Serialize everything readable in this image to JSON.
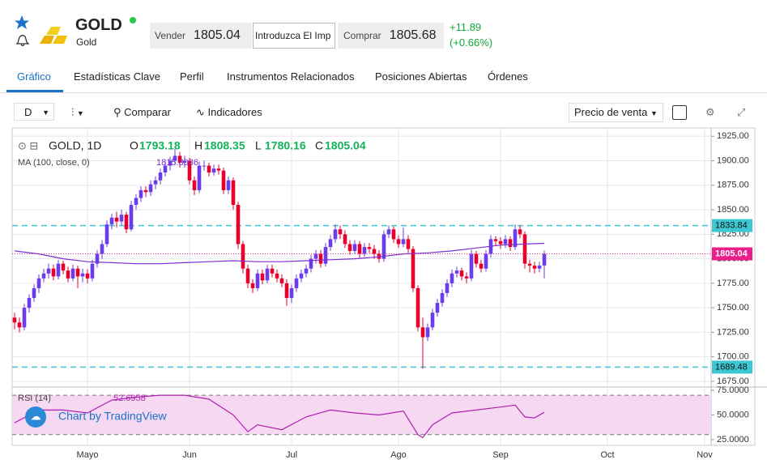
{
  "header": {
    "symbol": "GOLD",
    "name": "Gold",
    "sell_label": "Vender",
    "sell_price": "1805.04",
    "amount_placeholder": "Introduzca El Imp",
    "buy_label": "Comprar",
    "buy_price": "1805.68",
    "change": "+11.89",
    "change_pct": "(+0.66%)"
  },
  "tabs": [
    "Gráfico",
    "Estadísticas Clave",
    "Perfil",
    "Instrumentos Relacionados",
    "Posiciones Abiertas",
    "Órdenes"
  ],
  "toolbar": {
    "interval": "D",
    "compare": "Comparar",
    "indicators": "Indicadores",
    "price_type": "Precio de venta"
  },
  "chart": {
    "type": "candlestick",
    "symbol_label": "GOLD, 1D",
    "ohlc_labels": [
      "O",
      "H",
      "L",
      "C"
    ],
    "up_color": "#6a3de8",
    "down_color": "#e4002b",
    "ohlc": [
      [
        1740,
        1745,
        1728,
        1735
      ],
      [
        1735,
        1740,
        1725,
        1730
      ],
      [
        1730,
        1754,
        1727,
        1750
      ],
      [
        1750,
        1764,
        1745,
        1760
      ],
      [
        1760,
        1774,
        1756,
        1770
      ],
      [
        1770,
        1784,
        1765,
        1780
      ],
      [
        1780,
        1790,
        1776,
        1785
      ],
      [
        1785,
        1795,
        1780,
        1790
      ],
      [
        1790,
        1794,
        1778,
        1782
      ],
      [
        1782,
        1799,
        1779,
        1795
      ],
      [
        1795,
        1798,
        1784,
        1788
      ],
      [
        1788,
        1792,
        1776,
        1780
      ],
      [
        1780,
        1794,
        1777,
        1790
      ],
      [
        1790,
        1793,
        1770,
        1782
      ],
      [
        1782,
        1790,
        1776,
        1785
      ],
      [
        1785,
        1789,
        1775,
        1780
      ],
      [
        1780,
        1799,
        1777,
        1795
      ],
      [
        1795,
        1809,
        1791,
        1805
      ],
      [
        1805,
        1819,
        1800,
        1815
      ],
      [
        1815,
        1839,
        1812,
        1835
      ],
      [
        1835,
        1846,
        1830,
        1842
      ],
      [
        1842,
        1848,
        1832,
        1838
      ],
      [
        1838,
        1850,
        1834,
        1845
      ],
      [
        1845,
        1848,
        1826,
        1830
      ],
      [
        1830,
        1859,
        1828,
        1855
      ],
      [
        1855,
        1866,
        1850,
        1862
      ],
      [
        1862,
        1874,
        1858,
        1870
      ],
      [
        1870,
        1874,
        1863,
        1868
      ],
      [
        1868,
        1880,
        1864,
        1876
      ],
      [
        1876,
        1884,
        1871,
        1880
      ],
      [
        1880,
        1892,
        1876,
        1888
      ],
      [
        1888,
        1899,
        1884,
        1895
      ],
      [
        1895,
        1904,
        1890,
        1900
      ],
      [
        1900,
        1912,
        1896,
        1905
      ],
      [
        1905,
        1909,
        1893,
        1898
      ],
      [
        1898,
        1905,
        1893,
        1900
      ],
      [
        1900,
        1903,
        1876,
        1880
      ],
      [
        1880,
        1884,
        1865,
        1870
      ],
      [
        1870,
        1899,
        1867,
        1895
      ],
      [
        1895,
        1900,
        1890,
        1895
      ],
      [
        1895,
        1898,
        1884,
        1888
      ],
      [
        1888,
        1896,
        1885,
        1892
      ],
      [
        1892,
        1896,
        1886,
        1890
      ],
      [
        1890,
        1893,
        1866,
        1870
      ],
      [
        1870,
        1884,
        1866,
        1880
      ],
      [
        1880,
        1883,
        1850,
        1855
      ],
      [
        1855,
        1858,
        1810,
        1815
      ],
      [
        1815,
        1818,
        1785,
        1790
      ],
      [
        1790,
        1794,
        1770,
        1775
      ],
      [
        1775,
        1779,
        1765,
        1770
      ],
      [
        1770,
        1789,
        1767,
        1785
      ],
      [
        1785,
        1789,
        1774,
        1778
      ],
      [
        1778,
        1794,
        1775,
        1790
      ],
      [
        1790,
        1794,
        1781,
        1785
      ],
      [
        1785,
        1789,
        1776,
        1780
      ],
      [
        1780,
        1784,
        1771,
        1775
      ],
      [
        1775,
        1779,
        1752,
        1760
      ],
      [
        1760,
        1774,
        1755,
        1770
      ],
      [
        1770,
        1784,
        1766,
        1780
      ],
      [
        1780,
        1789,
        1776,
        1785
      ],
      [
        1785,
        1794,
        1781,
        1790
      ],
      [
        1790,
        1804,
        1786,
        1800
      ],
      [
        1800,
        1809,
        1795,
        1805
      ],
      [
        1805,
        1809,
        1791,
        1795
      ],
      [
        1795,
        1816,
        1792,
        1812
      ],
      [
        1812,
        1824,
        1808,
        1820
      ],
      [
        1820,
        1835,
        1816,
        1830
      ],
      [
        1830,
        1834,
        1820,
        1825
      ],
      [
        1825,
        1829,
        1811,
        1815
      ],
      [
        1815,
        1819,
        1804,
        1808
      ],
      [
        1808,
        1819,
        1805,
        1815
      ],
      [
        1815,
        1818,
        1801,
        1805
      ],
      [
        1805,
        1816,
        1802,
        1812
      ],
      [
        1812,
        1816,
        1806,
        1810
      ],
      [
        1810,
        1814,
        1800,
        1805
      ],
      [
        1805,
        1809,
        1796,
        1800
      ],
      [
        1800,
        1829,
        1797,
        1825
      ],
      [
        1825,
        1834,
        1821,
        1830
      ],
      [
        1830,
        1833,
        1816,
        1820
      ],
      [
        1820,
        1824,
        1811,
        1815
      ],
      [
        1815,
        1832,
        1812,
        1820
      ],
      [
        1820,
        1824,
        1806,
        1810
      ],
      [
        1810,
        1813,
        1766,
        1770
      ],
      [
        1770,
        1773,
        1726,
        1730
      ],
      [
        1730,
        1740,
        1688,
        1720
      ],
      [
        1720,
        1734,
        1716,
        1730
      ],
      [
        1730,
        1749,
        1727,
        1745
      ],
      [
        1745,
        1759,
        1741,
        1755
      ],
      [
        1755,
        1769,
        1751,
        1765
      ],
      [
        1765,
        1779,
        1761,
        1775
      ],
      [
        1775,
        1789,
        1771,
        1785
      ],
      [
        1785,
        1792,
        1781,
        1788
      ],
      [
        1788,
        1791,
        1778,
        1782
      ],
      [
        1782,
        1786,
        1775,
        1780
      ],
      [
        1780,
        1809,
        1777,
        1805
      ],
      [
        1805,
        1808,
        1791,
        1795
      ],
      [
        1795,
        1799,
        1786,
        1790
      ],
      [
        1790,
        1809,
        1787,
        1805
      ],
      [
        1805,
        1824,
        1801,
        1820
      ],
      [
        1820,
        1823,
        1813,
        1818
      ],
      [
        1818,
        1822,
        1810,
        1815
      ],
      [
        1815,
        1824,
        1811,
        1820
      ],
      [
        1820,
        1823,
        1808,
        1812
      ],
      [
        1812,
        1835,
        1809,
        1830
      ],
      [
        1830,
        1834,
        1821,
        1825
      ],
      [
        1825,
        1828,
        1790,
        1795
      ],
      [
        1795,
        1799,
        1786,
        1793
      ],
      [
        1793,
        1797,
        1785,
        1790
      ],
      [
        1790,
        1797,
        1786,
        1793
      ],
      [
        1793.18,
        1808.35,
        1780.16,
        1805.04
      ]
    ],
    "xlim": [
      -1,
      143
    ],
    "xticks": [
      {
        "value": 15,
        "label": "Mayo"
      },
      {
        "value": 36,
        "label": "Jun"
      },
      {
        "value": 57,
        "label": "Jul"
      },
      {
        "value": 79,
        "label": "Ago"
      },
      {
        "value": 100,
        "label": "Sep"
      },
      {
        "value": 122,
        "label": "Oct"
      },
      {
        "value": 142,
        "label": "Nov"
      }
    ],
    "ylim": [
      1670,
      1931
    ],
    "yticks": [
      {
        "value": 1675,
        "label": "1675.00"
      },
      {
        "value": 1700,
        "label": "1700.00"
      },
      {
        "value": 1725,
        "label": "1725.00"
      },
      {
        "value": 1750,
        "label": "1750.00"
      },
      {
        "value": 1775,
        "label": "1775.00"
      },
      {
        "value": 1800,
        "label": "1800.00"
      },
      {
        "value": 1825,
        "label": "1825.00"
      },
      {
        "value": 1850,
        "label": "1850.00"
      },
      {
        "value": 1875,
        "label": "1875.00"
      },
      {
        "value": 1900,
        "label": "1900.00"
      },
      {
        "value": 1925,
        "label": "1925.00"
      }
    ],
    "levels": [
      1833.84,
      1689.48
    ],
    "level_color": "#3cc7d2",
    "price_color": "#e91e8c",
    "ma": {
      "label": "MA (100, close, 0)",
      "color": "#7b2fd0",
      "x": [
        0,
        5,
        10,
        15,
        20,
        25,
        30,
        35,
        40,
        45,
        50,
        55,
        60,
        65,
        70,
        75,
        80,
        85,
        90,
        95,
        100,
        105,
        109
      ],
      "values": [
        1808,
        1805,
        1800,
        1797,
        1796,
        1795,
        1795,
        1796,
        1797,
        1798,
        1797,
        1797,
        1798,
        1799,
        1800,
        1802,
        1805,
        1806,
        1808,
        1811,
        1814,
        1815,
        1815.8036
      ]
    },
    "rsi": {
      "label": "RSI (14)",
      "color": "#b020b0",
      "band_color": "#f7d8f3",
      "x": [
        0,
        5,
        10,
        15,
        20,
        25,
        30,
        35,
        40,
        45,
        48,
        50,
        55,
        60,
        65,
        70,
        75,
        80,
        83,
        84,
        86,
        90,
        95,
        100,
        103,
        105,
        107,
        109
      ],
      "values": [
        42,
        55,
        55,
        52,
        65,
        68,
        70,
        70,
        66,
        50,
        33,
        40,
        35,
        48,
        55,
        52,
        50,
        54,
        30,
        27,
        40,
        52,
        55,
        58,
        60,
        48,
        47,
        52.6958
      ],
      "ylim": [
        20.8,
        78.3
      ],
      "yticks": [
        {
          "value": 25,
          "label": "25.0000"
        },
        {
          "value": 50,
          "label": "50.0000"
        },
        {
          "value": 75,
          "label": "75.0000"
        }
      ],
      "levels": [
        30,
        70
      ]
    },
    "watermark": "Chart by TradingView"
  }
}
